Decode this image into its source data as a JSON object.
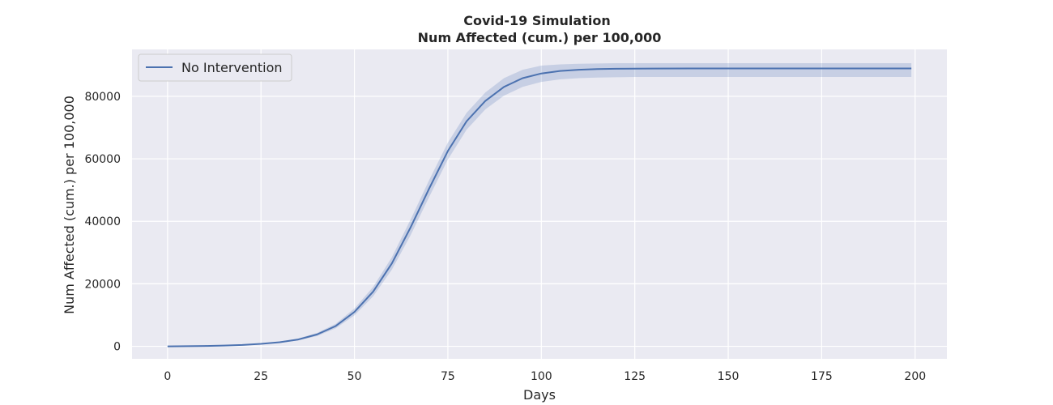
{
  "chart_data": {
    "type": "line",
    "title": "Covid-19 Simulation",
    "subtitle": "Num Affected (cum.) per 100,000",
    "xlabel": "Days",
    "ylabel": "Num Affected (cum.) per 100,000",
    "xlim": [
      -9.5,
      208.5
    ],
    "ylim": [
      -4000,
      95000
    ],
    "xticks": [
      0,
      25,
      50,
      75,
      100,
      125,
      150,
      175,
      200
    ],
    "yticks": [
      0,
      20000,
      40000,
      60000,
      80000
    ],
    "grid": true,
    "legend_position": "top-left",
    "series": [
      {
        "name": "No Intervention",
        "x": [
          0,
          5,
          10,
          15,
          20,
          25,
          30,
          35,
          40,
          45,
          50,
          55,
          60,
          65,
          70,
          75,
          80,
          85,
          90,
          95,
          100,
          105,
          110,
          115,
          120,
          125,
          130,
          140,
          150,
          160,
          170,
          180,
          190,
          199
        ],
        "y": [
          0,
          50,
          120,
          250,
          450,
          800,
          1300,
          2200,
          3800,
          6500,
          11000,
          17500,
          26500,
          38000,
          50500,
          62500,
          72000,
          78500,
          83000,
          85800,
          87300,
          88100,
          88500,
          88700,
          88800,
          88850,
          88880,
          88900,
          88900,
          88900,
          88900,
          88900,
          88900,
          88900
        ],
        "lower": [
          0,
          40,
          100,
          210,
          380,
          680,
          1100,
          1900,
          3300,
          5800,
          9900,
          16000,
          24500,
          35500,
          47800,
          59800,
          69300,
          75800,
          80200,
          83000,
          84600,
          85400,
          85800,
          86000,
          86100,
          86200,
          86200,
          86200,
          86200,
          86200,
          86200,
          86200,
          86200,
          86200
        ],
        "upper": [
          0,
          60,
          140,
          290,
          520,
          920,
          1500,
          2500,
          4300,
          7200,
          12100,
          19000,
          28500,
          40500,
          53200,
          65200,
          74700,
          81200,
          85800,
          88500,
          89800,
          90200,
          90400,
          90500,
          90600,
          90600,
          90600,
          90600,
          90600,
          90600,
          90600,
          90600,
          90600,
          90600
        ]
      }
    ]
  },
  "colors": {
    "background": "#eaeaf2",
    "grid": "#ffffff",
    "line": "#4c72b0",
    "band": "#4c72b0",
    "text": "#262626"
  }
}
